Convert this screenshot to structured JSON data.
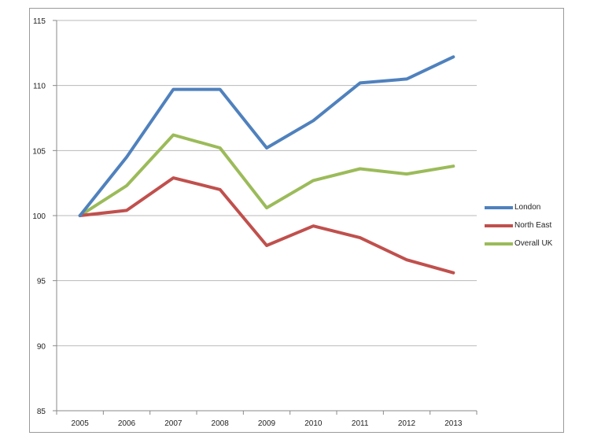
{
  "chart_data": {
    "type": "line",
    "title": "",
    "xlabel": "",
    "ylabel": "",
    "categories": [
      "2005",
      "2006",
      "2007",
      "2008",
      "2009",
      "2010",
      "2011",
      "2012",
      "2013"
    ],
    "ylim": [
      85,
      115
    ],
    "yticks": [
      "85",
      "90",
      "95",
      "100",
      "105",
      "110",
      "115"
    ],
    "grid": "horizontal",
    "legend_position": "right",
    "series": [
      {
        "name": "London",
        "color": "#4f81bd",
        "values": [
          100,
          104.5,
          109.7,
          109.7,
          105.2,
          107.3,
          110.2,
          110.5,
          112.2
        ]
      },
      {
        "name": "North East",
        "color": "#c0504d",
        "values": [
          100,
          100.4,
          102.9,
          102.0,
          97.7,
          99.2,
          98.3,
          96.6,
          95.6
        ]
      },
      {
        "name": "Overall UK",
        "color": "#9bbb59",
        "values": [
          100,
          102.3,
          106.2,
          105.2,
          100.6,
          102.7,
          103.6,
          103.2,
          103.8
        ]
      }
    ]
  }
}
